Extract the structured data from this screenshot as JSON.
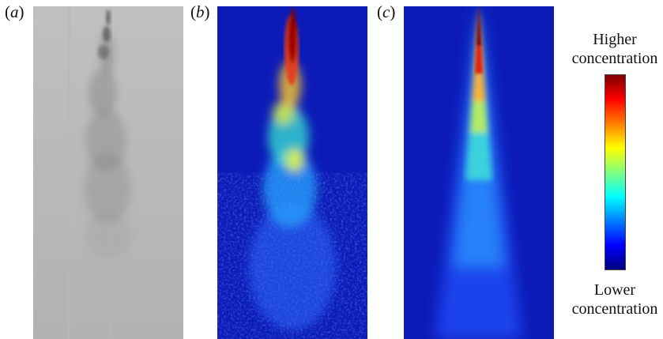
{
  "panels": [
    {
      "label_open": "(",
      "label_letter": "a",
      "label_close": ")"
    },
    {
      "label_open": "(",
      "label_letter": "b",
      "label_close": ")"
    },
    {
      "label_open": "(",
      "label_letter": "c",
      "label_close": ")"
    }
  ],
  "colorbar": {
    "top_line1": "Higher",
    "top_line2": "concentration",
    "bottom_line1": "Lower",
    "bottom_line2": "concentration",
    "colors": [
      "#00007f",
      "#0000ff",
      "#007fff",
      "#00ffff",
      "#7fff7f",
      "#ffff00",
      "#ff7f00",
      "#ff0000",
      "#7f0000"
    ]
  }
}
